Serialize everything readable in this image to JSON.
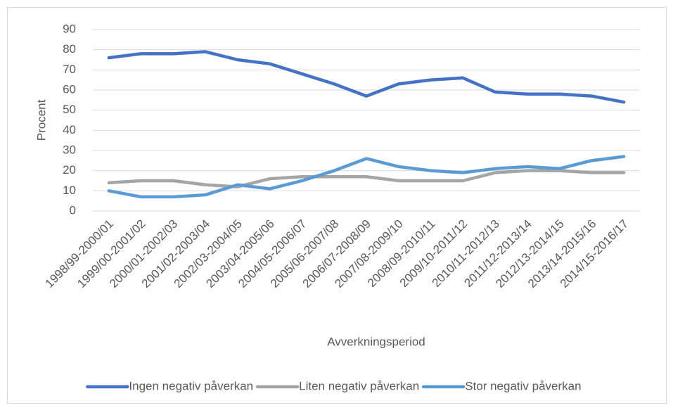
{
  "chart_data": {
    "type": "line",
    "x_label": "Avverkningsperiod",
    "y_label": "Procent",
    "categories": [
      "1998/99-2000/01",
      "1999/00-2001/02",
      "2000/01-2002/03",
      "2001/02-2003/04",
      "2002/03-2004/05",
      "2003/04-2005/06",
      "2004/05-2006/07",
      "2005/06-2007/08",
      "2006/07-2008/09",
      "2007/08-2009/10",
      "2008/09-2010/11",
      "2009/10-2011/12",
      "2010/11-2012/13",
      "2011/12-2013/14",
      "2012/13-2014/15",
      "2013/14-2015/16",
      "2014/15-2016/17"
    ],
    "series": [
      {
        "name": "Ingen negativ påverkan",
        "color": "#4472c4",
        "values": [
          76,
          78,
          78,
          79,
          75,
          73,
          68,
          63,
          57,
          63,
          65,
          66,
          59,
          58,
          58,
          57,
          54
        ]
      },
      {
        "name": "Liten negativ påverkan",
        "color": "#a5a5a5",
        "values": [
          14,
          15,
          15,
          13,
          12,
          16,
          17,
          17,
          17,
          15,
          15,
          15,
          19,
          20,
          20,
          19,
          19
        ]
      },
      {
        "name": "Stor negativ påverkan",
        "color": "#5b9bd5",
        "values": [
          10,
          7,
          7,
          8,
          13,
          11,
          15,
          20,
          26,
          22,
          20,
          19,
          21,
          22,
          21,
          25,
          27
        ]
      }
    ],
    "ylim": [
      0,
      90
    ],
    "yticks": [
      0,
      10,
      20,
      30,
      40,
      50,
      60,
      70,
      80,
      90
    ],
    "grid": true,
    "legend": "bottom"
  }
}
